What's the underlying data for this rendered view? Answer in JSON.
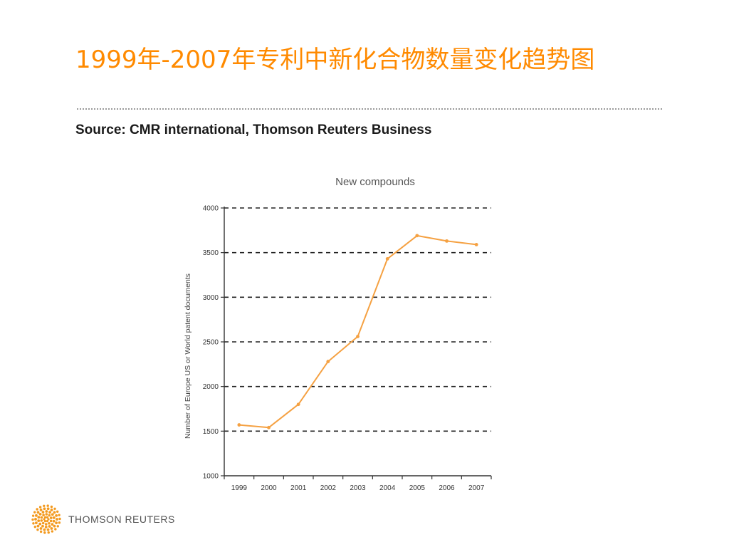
{
  "slide": {
    "title": "1999年-2007年专利中新化合物数量变化趋势图",
    "source": "Source: CMR international, Thomson Reuters Business"
  },
  "brand": {
    "name": "THOMSON REUTERS",
    "logo_icon": "thomson-reuters-dot-sphere-icon",
    "logo_color": "#f39a1f"
  },
  "chart_data": {
    "type": "line",
    "title": "New compounds",
    "xlabel": "",
    "ylabel": "Number of Europe US or World patent documents",
    "categories": [
      "1999",
      "2000",
      "2001",
      "2002",
      "2003",
      "2004",
      "2005",
      "2006",
      "2007"
    ],
    "tick_labels": [
      "1999",
      "2000",
      "2001",
      "2002",
      "2003",
      "2004",
      "2005",
      "2006",
      "2007"
    ],
    "series": [
      {
        "values": [
          1570,
          1540,
          1800,
          2280,
          2560,
          3430,
          3690,
          3630,
          3590
        ],
        "color": "#f5a142"
      }
    ],
    "ylim": [
      1000,
      4000
    ],
    "yticks": [
      1000,
      1500,
      2000,
      2500,
      3000,
      3500,
      4000
    ],
    "grid": "dashed horizontal"
  }
}
